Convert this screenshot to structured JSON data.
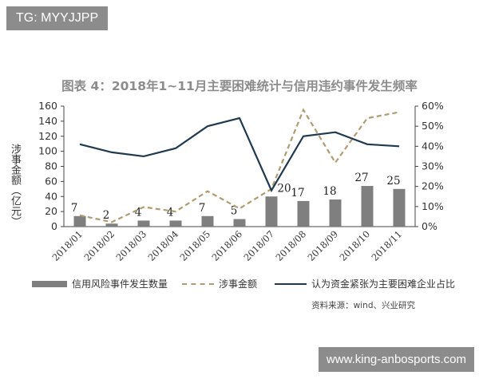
{
  "watermark_top": "TG: MYYJJPP",
  "watermark_bottom": "www.king-anbosports.com",
  "source": "资料来源：wind、兴业研究",
  "colors": {
    "bar": "#7f7f7f",
    "dashed": "#b09d6f",
    "line": "#1f3a4f",
    "axis": "#444444"
  },
  "chart_data": {
    "type": "bar",
    "title": "图表 4：2018年1~11月主要困难统计与信用违约事件发生频率",
    "ylabel": "涉事金额（亿元）",
    "categories": [
      "2018/01",
      "2018/02",
      "2018/03",
      "2018/04",
      "2018/05",
      "2018/06",
      "2018/07",
      "2018/08",
      "2018/09",
      "2018/10",
      "2018/11"
    ],
    "ylim": [
      0,
      160
    ],
    "y_ticks": [
      "0",
      "20",
      "40",
      "60",
      "80",
      "100",
      "120",
      "140",
      "160"
    ],
    "y2lim": [
      0,
      60
    ],
    "y2_ticks": [
      "0%",
      "10%",
      "20%",
      "30%",
      "40%",
      "50%",
      "60%"
    ],
    "legend_position": "bottom",
    "series": [
      {
        "name": "信用风险事件发生数量",
        "type": "bar",
        "axis": "left",
        "values": [
          14,
          4,
          8,
          8,
          14,
          10,
          40,
          34,
          36,
          54,
          50
        ],
        "labels": [
          "7",
          "2",
          "4",
          "4",
          "7",
          "5",
          "20",
          "17",
          "18",
          "27",
          "25"
        ]
      },
      {
        "name": "涉事金额",
        "type": "line",
        "style": "dashed",
        "axis": "left",
        "values": [
          15,
          6,
          26,
          20,
          47,
          24,
          50,
          155,
          85,
          144,
          152
        ]
      },
      {
        "name": "认为资金紧张为主要困难企业占比",
        "type": "line",
        "style": "solid",
        "axis": "right",
        "values": [
          41,
          37,
          35,
          39,
          50,
          54,
          18,
          45,
          47,
          41,
          40
        ]
      }
    ]
  }
}
